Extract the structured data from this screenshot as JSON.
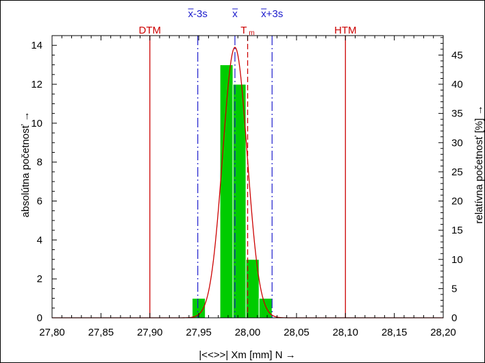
{
  "chart_data": {
    "type": "histogram",
    "x_axis": {
      "label": "|<<>>|  Xm [mm]  N →",
      "range": [
        27.8,
        28.2
      ],
      "ticks": [
        27.8,
        27.85,
        27.9,
        27.95,
        28.0,
        28.05,
        28.1,
        28.15,
        28.2
      ],
      "tick_labels": [
        "27,80",
        "27,85",
        "27,90",
        "27,95",
        "28,00",
        "28,05",
        "28,10",
        "28,15",
        "28,20"
      ]
    },
    "y_left": {
      "label": "absolútna početnosť →",
      "range": [
        0,
        14.5
      ],
      "ticks": [
        0,
        2,
        4,
        6,
        8,
        10,
        12,
        14
      ]
    },
    "y_right": {
      "label": "relatívna početnosť  [%] →",
      "range": [
        0,
        48.33
      ],
      "ticks": [
        0,
        5,
        10,
        15,
        20,
        25,
        30,
        35,
        40,
        45
      ]
    },
    "bars": [
      {
        "x0": 27.9433,
        "x1": 27.9567,
        "count": 1
      },
      {
        "x0": 27.9717,
        "x1": 27.985,
        "count": 13
      },
      {
        "x0": 27.985,
        "x1": 27.9983,
        "count": 12
      },
      {
        "x0": 27.9983,
        "x1": 28.0117,
        "count": 3
      },
      {
        "x0": 28.0117,
        "x1": 28.025,
        "count": 1
      }
    ],
    "bar_color": "#00cc00",
    "curve": {
      "type": "normal",
      "mean": 27.987,
      "sigma": 0.0125,
      "peak": 13.9,
      "color": "#cc0000"
    },
    "limit_lines": [
      {
        "label": "DTM",
        "x": 27.9,
        "color": "#cc0000",
        "style": "solid"
      },
      {
        "label": "T",
        "sub": "m",
        "x": 28.0,
        "color": "#cc0000",
        "style": "dashed"
      },
      {
        "label": "HTM",
        "x": 28.1,
        "color": "#cc0000",
        "style": "solid"
      }
    ],
    "stat_lines": [
      {
        "label": "x-3s",
        "x": 27.949,
        "color": "#1a1acc",
        "style": "dashdot"
      },
      {
        "label": "x",
        "x": 27.987,
        "color": "#1a1acc",
        "style": "dashdot"
      },
      {
        "label": "x+3s",
        "x": 28.025,
        "color": "#1a1acc",
        "style": "dashdot"
      }
    ]
  }
}
